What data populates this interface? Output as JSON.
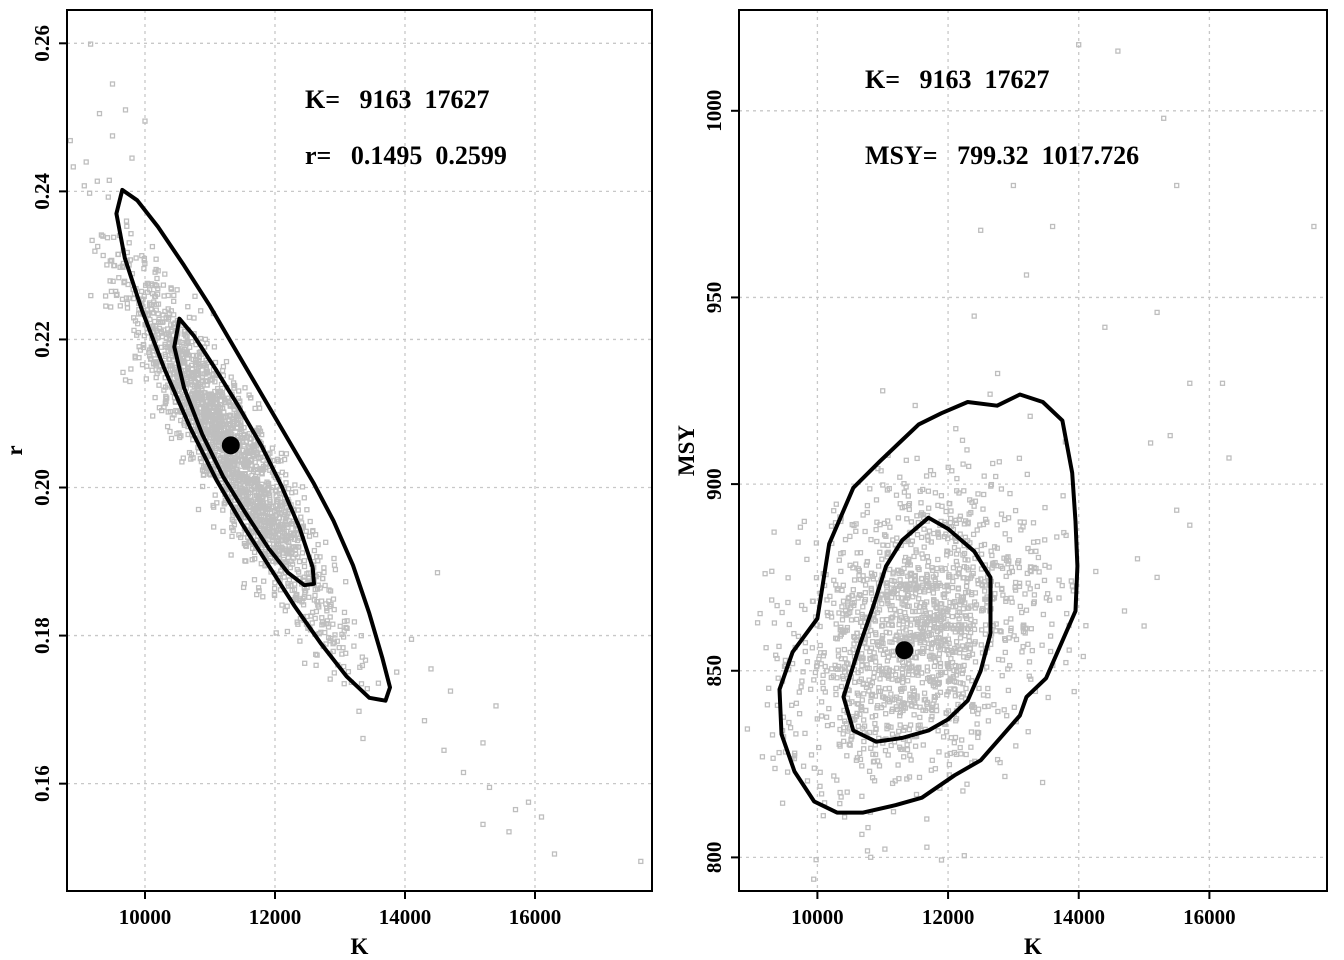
{
  "chart_data": [
    {
      "type": "scatter",
      "xlabel": "K",
      "ylabel": "r",
      "xlim": [
        8800,
        17800
      ],
      "ylim": [
        0.1455,
        0.2645
      ],
      "x_ticks": [
        10000,
        12000,
        14000,
        16000
      ],
      "x_tick_labels": [
        "10000",
        "12000",
        "14000",
        "16000"
      ],
      "y_ticks": [
        0.16,
        0.18,
        0.2,
        0.22,
        0.24,
        0.26
      ],
      "y_tick_labels": [
        "0.16",
        "0.18",
        "0.20",
        "0.22",
        "0.24",
        "0.26"
      ],
      "grid": true,
      "annotations": [
        "K=   9163  17627",
        "r=   0.1495  0.2599"
      ],
      "point_color": "#bebebe",
      "line_color": "#000000",
      "points_cloud": {
        "center": [
          11300,
          0.205
        ],
        "sd_x": 820,
        "sd_y": 0.0125,
        "corr": -0.93,
        "n": 1900
      },
      "outliers": [
        [
          9163,
          0.2599
        ],
        [
          9500,
          0.2545
        ],
        [
          9700,
          0.251
        ],
        [
          10000,
          0.2495
        ],
        [
          9500,
          0.2475
        ],
        [
          9300,
          0.2505
        ],
        [
          9800,
          0.2445
        ],
        [
          9450,
          0.2415
        ],
        [
          14400,
          0.1755
        ],
        [
          14700,
          0.1725
        ],
        [
          15200,
          0.1655
        ],
        [
          15400,
          0.1705
        ],
        [
          14900,
          0.1615
        ],
        [
          15300,
          0.1595
        ],
        [
          15700,
          0.1565
        ],
        [
          15900,
          0.1575
        ],
        [
          16100,
          0.1555
        ],
        [
          16300,
          0.1505
        ],
        [
          15600,
          0.1535
        ],
        [
          15200,
          0.1545
        ],
        [
          17627,
          0.1495
        ],
        [
          14500,
          0.1885
        ],
        [
          14100,
          0.1795
        ],
        [
          14300,
          0.1685
        ],
        [
          14600,
          0.1645
        ]
      ],
      "contours": [
        [
          [
            9650,
            0.2402
          ],
          [
            9880,
            0.2388
          ],
          [
            10200,
            0.2352
          ],
          [
            10600,
            0.23
          ],
          [
            11000,
            0.2245
          ],
          [
            11400,
            0.2185
          ],
          [
            11800,
            0.2125
          ],
          [
            12200,
            0.2065
          ],
          [
            12600,
            0.2005
          ],
          [
            12900,
            0.1955
          ],
          [
            13200,
            0.1895
          ],
          [
            13450,
            0.183
          ],
          [
            13650,
            0.177
          ],
          [
            13770,
            0.173
          ],
          [
            13700,
            0.1712
          ],
          [
            13450,
            0.1716
          ],
          [
            13100,
            0.1745
          ],
          [
            12700,
            0.179
          ],
          [
            12300,
            0.184
          ],
          [
            11900,
            0.1895
          ],
          [
            11500,
            0.195
          ],
          [
            11100,
            0.201
          ],
          [
            10700,
            0.208
          ],
          [
            10300,
            0.216
          ],
          [
            9950,
            0.224
          ],
          [
            9690,
            0.231
          ],
          [
            9560,
            0.237
          ],
          [
            9650,
            0.2402
          ]
        ],
        [
          [
            10530,
            0.2228
          ],
          [
            10750,
            0.2205
          ],
          [
            11100,
            0.2158
          ],
          [
            11450,
            0.2108
          ],
          [
            11800,
            0.2055
          ],
          [
            12100,
            0.2002
          ],
          [
            12380,
            0.1945
          ],
          [
            12580,
            0.1892
          ],
          [
            12600,
            0.187
          ],
          [
            12450,
            0.1868
          ],
          [
            12200,
            0.1885
          ],
          [
            11900,
            0.1918
          ],
          [
            11550,
            0.1965
          ],
          [
            11200,
            0.2015
          ],
          [
            10880,
            0.2072
          ],
          [
            10600,
            0.2135
          ],
          [
            10450,
            0.219
          ],
          [
            10530,
            0.2228
          ]
        ]
      ],
      "mean_point": [
        11320,
        0.2057
      ]
    },
    {
      "type": "scatter",
      "xlabel": "K",
      "ylabel": "MSY",
      "xlim": [
        8800,
        17800
      ],
      "ylim": [
        791,
        1027
      ],
      "x_ticks": [
        10000,
        12000,
        14000,
        16000
      ],
      "x_tick_labels": [
        "10000",
        "12000",
        "14000",
        "16000"
      ],
      "y_ticks": [
        800,
        850,
        900,
        950,
        1000
      ],
      "y_tick_labels": [
        "800",
        "850",
        "900",
        "950",
        "1000"
      ],
      "grid": true,
      "annotations": [
        "K=   9163  17627",
        "MSY=   799.32  1017.726"
      ],
      "point_color": "#bebebe",
      "line_color": "#000000",
      "points_cloud": {
        "center": [
          11500,
          860
        ],
        "sd_x": 950,
        "sd_y": 20,
        "corr": 0.3,
        "n": 1600
      },
      "outliers": [
        [
          14000,
          1017.7
        ],
        [
          14600,
          1016
        ],
        [
          15300,
          998
        ],
        [
          15500,
          980
        ],
        [
          13000,
          980
        ],
        [
          17600,
          969
        ],
        [
          16200,
          927
        ],
        [
          15700,
          927
        ],
        [
          16300,
          907
        ],
        [
          15400,
          913
        ],
        [
          15500,
          893
        ],
        [
          15700,
          889
        ],
        [
          15200,
          875
        ],
        [
          14900,
          880
        ],
        [
          15000,
          862
        ],
        [
          14700,
          866
        ],
        [
          9200,
          876
        ],
        [
          9400,
          848
        ],
        [
          11900,
          799.3
        ],
        [
          13600,
          969
        ],
        [
          13200,
          956
        ],
        [
          12500,
          968
        ],
        [
          14400,
          942
        ],
        [
          15200,
          946
        ],
        [
          11000,
          925
        ],
        [
          12400,
          945
        ],
        [
          15100,
          911
        ],
        [
          9800,
          890
        ]
      ],
      "contours": [
        [
          [
            9620,
            855
          ],
          [
            10000,
            864
          ],
          [
            10180,
            884
          ],
          [
            10550,
            899
          ],
          [
            10950,
            906
          ],
          [
            11250,
            911
          ],
          [
            11550,
            916
          ],
          [
            11900,
            919
          ],
          [
            12300,
            922
          ],
          [
            12750,
            921
          ],
          [
            13100,
            924
          ],
          [
            13450,
            922
          ],
          [
            13750,
            917
          ],
          [
            13900,
            903
          ],
          [
            13950,
            890
          ],
          [
            13980,
            878
          ],
          [
            13950,
            866
          ],
          [
            13700,
            856
          ],
          [
            13500,
            848
          ],
          [
            13200,
            843
          ],
          [
            13100,
            838
          ],
          [
            12800,
            832
          ],
          [
            12500,
            826
          ],
          [
            12100,
            822
          ],
          [
            11600,
            816
          ],
          [
            11200,
            814
          ],
          [
            10700,
            812
          ],
          [
            10300,
            812
          ],
          [
            9950,
            815
          ],
          [
            9650,
            823
          ],
          [
            9450,
            833
          ],
          [
            9420,
            845
          ],
          [
            9620,
            855
          ]
        ],
        [
          [
            10400,
            843
          ],
          [
            10650,
            857
          ],
          [
            10850,
            867
          ],
          [
            11050,
            878
          ],
          [
            11300,
            885
          ],
          [
            11700,
            891
          ],
          [
            12000,
            888
          ],
          [
            12400,
            882
          ],
          [
            12650,
            875
          ],
          [
            12650,
            860
          ],
          [
            12500,
            850
          ],
          [
            12300,
            842
          ],
          [
            12000,
            837
          ],
          [
            11700,
            834
          ],
          [
            11300,
            832
          ],
          [
            10900,
            831
          ],
          [
            10550,
            834
          ],
          [
            10400,
            843
          ]
        ]
      ],
      "mean_point": [
        11330,
        855.5
      ]
    }
  ]
}
